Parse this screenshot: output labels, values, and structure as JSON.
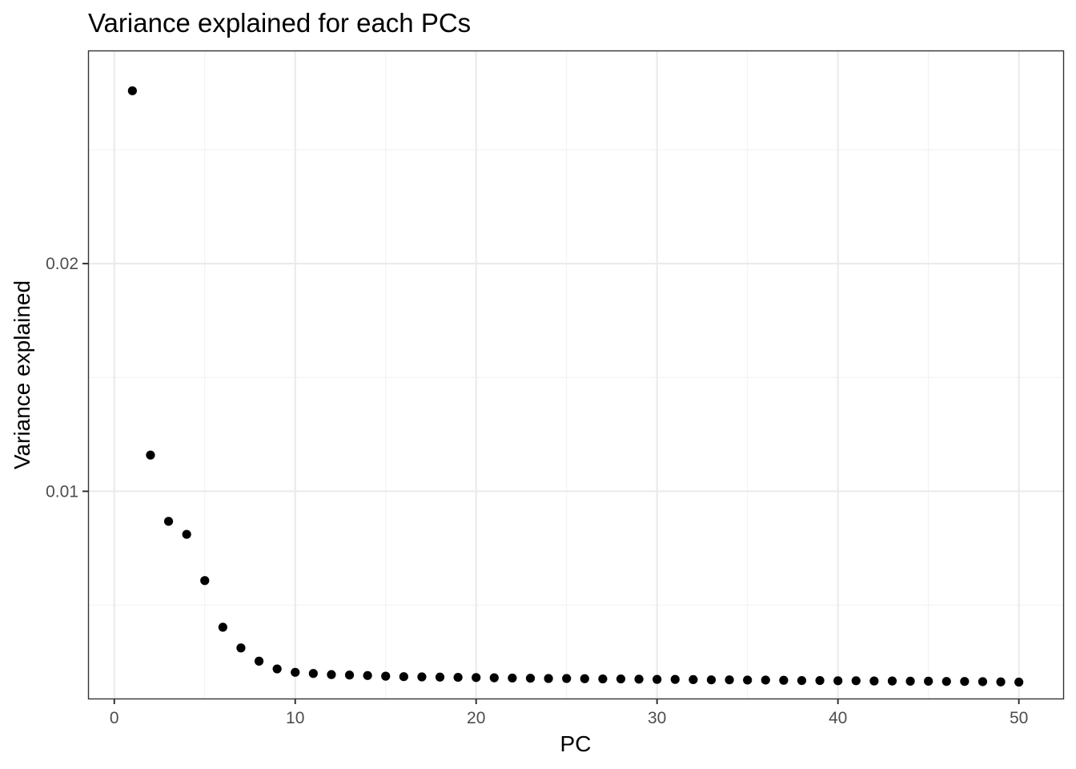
{
  "chart_data": {
    "type": "scatter",
    "title": "Variance explained for each PCs",
    "xlabel": "PC",
    "ylabel": "Variance explained",
    "xlim": [
      -1.45,
      52.45
    ],
    "ylim": [
      0.0009,
      0.02936
    ],
    "x_ticks": [
      0,
      10,
      20,
      30,
      40,
      50
    ],
    "y_ticks": [
      0.01,
      0.02
    ],
    "x_tick_labels": [
      "0",
      "10",
      "20",
      "30",
      "40",
      "50"
    ],
    "y_tick_labels": [
      "0.01",
      "0.02"
    ],
    "grid": true,
    "legend": "none",
    "point_color": "#000000",
    "x": [
      1,
      2,
      3,
      4,
      5,
      6,
      7,
      8,
      9,
      10,
      11,
      12,
      13,
      14,
      15,
      16,
      17,
      18,
      19,
      20,
      21,
      22,
      23,
      24,
      25,
      26,
      27,
      28,
      29,
      30,
      31,
      32,
      33,
      34,
      35,
      36,
      37,
      38,
      39,
      40,
      41,
      42,
      43,
      44,
      45,
      46,
      47,
      48,
      49,
      50
    ],
    "y": [
      0.02759,
      0.01159,
      0.00868,
      0.00811,
      0.00608,
      0.00403,
      0.00312,
      0.00254,
      0.0022,
      0.00205,
      0.002,
      0.00195,
      0.00193,
      0.00191,
      0.00188,
      0.00186,
      0.00185,
      0.00184,
      0.00183,
      0.00182,
      0.00181,
      0.0018,
      0.00179,
      0.00178,
      0.00178,
      0.00177,
      0.00176,
      0.00176,
      0.00175,
      0.00174,
      0.00174,
      0.00173,
      0.00172,
      0.00172,
      0.00171,
      0.00171,
      0.0017,
      0.00169,
      0.00169,
      0.00168,
      0.00168,
      0.00167,
      0.00167,
      0.00166,
      0.00166,
      0.00165,
      0.00165,
      0.00164,
      0.00163,
      0.00162
    ]
  }
}
